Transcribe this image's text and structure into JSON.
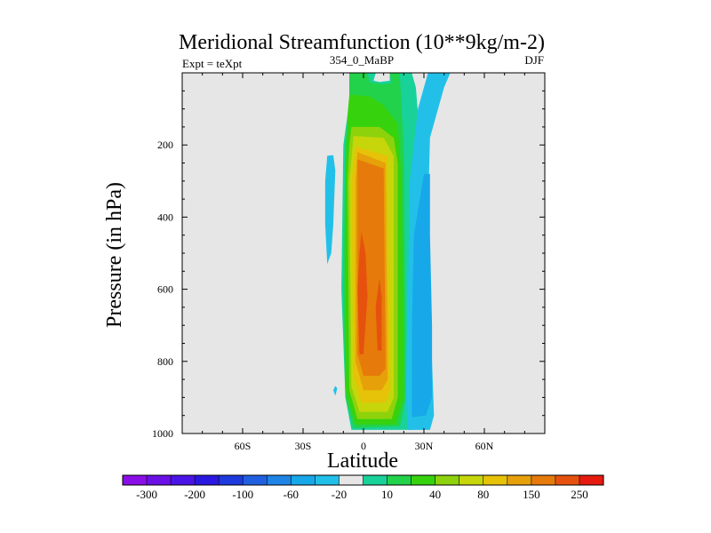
{
  "chart_data": {
    "type": "heatmap",
    "title": "Meridional Streamfunction (10**9kg/m-2)",
    "subtitle_left": "Expt = teXpt",
    "subtitle_center": "354_0_MaBP",
    "subtitle_right": "DJF",
    "xlabel": "Latitude",
    "ylabel": "Pressure (in hPa)",
    "x_ticks": [
      {
        "value": -60,
        "label": "60S"
      },
      {
        "value": -30,
        "label": "30S"
      },
      {
        "value": 0,
        "label": "0"
      },
      {
        "value": 30,
        "label": "30N"
      },
      {
        "value": 60,
        "label": "60N"
      }
    ],
    "y_ticks": [
      {
        "value": 200,
        "label": "200"
      },
      {
        "value": 400,
        "label": "400"
      },
      {
        "value": 600,
        "label": "600"
      },
      {
        "value": 800,
        "label": "800"
      },
      {
        "value": 1000,
        "label": "1000"
      }
    ],
    "xlim": [
      -90,
      90
    ],
    "ylim": [
      0,
      1000
    ],
    "y_reversed": true,
    "background": "#e6e6e6",
    "colorbar": {
      "colors": [
        "#8a0ee6",
        "#6a10e6",
        "#4a14e6",
        "#2a18e0",
        "#1e3adc",
        "#2060e0",
        "#1e84e6",
        "#17a8ea",
        "#22c0e8",
        "#e6e6e6",
        "#18d29a",
        "#22d24a",
        "#36d20e",
        "#8ed20c",
        "#c6d60a",
        "#e6c208",
        "#e6a00a",
        "#e67a0a",
        "#e6520e",
        "#e61a0e"
      ],
      "labels": [
        "-300",
        "-200",
        "-100",
        "-60",
        "-20",
        "10",
        "40",
        "80",
        "150",
        "250"
      ]
    },
    "contour_regions": [
      {
        "level": 10,
        "color": "#18d29a",
        "points": [
          [
            -7,
            1
          ],
          [
            6,
            1
          ],
          [
            5,
            22
          ],
          [
            8,
            25
          ],
          [
            13,
            22
          ],
          [
            13,
            1
          ],
          [
            24,
            1
          ],
          [
            26,
            40
          ],
          [
            27,
            110
          ],
          [
            28,
            950
          ],
          [
            25,
            990
          ],
          [
            -6,
            990
          ],
          [
            -9,
            900
          ],
          [
            -11,
            600
          ],
          [
            -10,
            200
          ],
          [
            -7,
            80
          ]
        ]
      },
      {
        "level": 40,
        "color": "#22d24a",
        "points": [
          [
            -7,
            1
          ],
          [
            2,
            1
          ],
          [
            3,
            25
          ],
          [
            9,
            32
          ],
          [
            14,
            28
          ],
          [
            13,
            1
          ],
          [
            18,
            1
          ],
          [
            19,
            110
          ],
          [
            20,
            200
          ],
          [
            21,
            900
          ],
          [
            18,
            980
          ],
          [
            -5,
            985
          ],
          [
            -9,
            900
          ],
          [
            -10,
            600
          ],
          [
            -9,
            200
          ],
          [
            -7,
            90
          ]
        ]
      },
      {
        "level": 80,
        "color": "#36d20e",
        "points": [
          [
            -7,
            60
          ],
          [
            3,
            65
          ],
          [
            10,
            90
          ],
          [
            17,
            140
          ],
          [
            19,
            300
          ],
          [
            20,
            900
          ],
          [
            16,
            975
          ],
          [
            -4,
            975
          ],
          [
            -9,
            880
          ],
          [
            -9,
            300
          ],
          [
            -8,
            120
          ]
        ]
      },
      {
        "level": 80,
        "color": "#8ed20c",
        "points": [
          [
            -6,
            150
          ],
          [
            8,
            150
          ],
          [
            15,
            180
          ],
          [
            17,
            250
          ],
          [
            17,
            900
          ],
          [
            14,
            960
          ],
          [
            -3,
            960
          ],
          [
            -7,
            880
          ],
          [
            -8,
            300
          ],
          [
            -7,
            200
          ]
        ]
      },
      {
        "level": 150,
        "color": "#c6d60a",
        "points": [
          [
            -5,
            175
          ],
          [
            10,
            180
          ],
          [
            15,
            230
          ],
          [
            15,
            900
          ],
          [
            12,
            940
          ],
          [
            -2,
            940
          ],
          [
            -6,
            870
          ],
          [
            -7,
            300
          ]
        ]
      },
      {
        "level": 150,
        "color": "#e6c208",
        "points": [
          [
            -4,
            205
          ],
          [
            12,
            230
          ],
          [
            13,
            880
          ],
          [
            11,
            915
          ],
          [
            -1,
            915
          ],
          [
            -5,
            840
          ],
          [
            -6,
            300
          ]
        ]
      },
      {
        "level": 150,
        "color": "#e6a00a",
        "points": [
          [
            -3,
            220
          ],
          [
            11,
            250
          ],
          [
            12,
            850
          ],
          [
            9,
            880
          ],
          [
            0,
            880
          ],
          [
            -4,
            800
          ],
          [
            -4,
            300
          ]
        ]
      },
      {
        "level": 150,
        "color": "#e67a0a",
        "points": [
          [
            -3,
            240
          ],
          [
            10,
            265
          ],
          [
            11,
            820
          ],
          [
            8,
            840
          ],
          [
            0,
            840
          ],
          [
            -3,
            780
          ],
          [
            -3,
            300
          ]
        ]
      },
      {
        "level": 250,
        "color": "#e6520e",
        "points": [
          [
            -1,
            440
          ],
          [
            1,
            500
          ],
          [
            2,
            620
          ],
          [
            0,
            780
          ],
          [
            -2,
            780
          ],
          [
            -3,
            600
          ],
          [
            -2,
            500
          ]
        ]
      },
      {
        "level": 250,
        "color": "#e6520e",
        "points": [
          [
            8,
            570
          ],
          [
            9,
            620
          ],
          [
            9,
            770
          ],
          [
            7,
            770
          ],
          [
            6,
            650
          ]
        ]
      },
      {
        "level": -10,
        "color": "#22c0e8",
        "points": [
          [
            32,
            1
          ],
          [
            43,
            1
          ],
          [
            40,
            40
          ],
          [
            33,
            180
          ],
          [
            32,
            400
          ],
          [
            33,
            600
          ],
          [
            34,
            800
          ],
          [
            35,
            950
          ],
          [
            33,
            990
          ],
          [
            22,
            990
          ],
          [
            21,
            900
          ],
          [
            22,
            600
          ],
          [
            23,
            300
          ],
          [
            27,
            100
          ]
        ]
      },
      {
        "level": -20,
        "color": "#17a8ea",
        "points": [
          [
            30,
            280
          ],
          [
            33,
            280
          ],
          [
            33,
            450
          ],
          [
            34,
            700
          ],
          [
            34,
            900
          ],
          [
            31,
            950
          ],
          [
            24,
            955
          ],
          [
            24,
            700
          ],
          [
            25,
            450
          ]
        ]
      },
      {
        "level": -10,
        "color": "#22c0e8",
        "points": [
          [
            -18,
            230
          ],
          [
            -15,
            228
          ],
          [
            -14,
            270
          ],
          [
            -15,
            420
          ],
          [
            -16,
            500
          ],
          [
            -18,
            530
          ],
          [
            -19,
            420
          ],
          [
            -19,
            300
          ]
        ]
      },
      {
        "level": -10,
        "color": "#22c0e8",
        "points": [
          [
            -14,
            868
          ],
          [
            -13,
            875
          ],
          [
            -14,
            895
          ],
          [
            -15,
            880
          ]
        ]
      }
    ]
  }
}
